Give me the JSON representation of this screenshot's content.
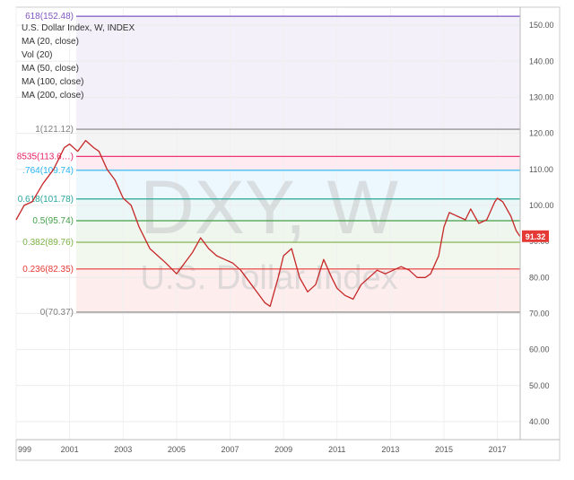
{
  "legend": {
    "title": "U.S. Dollar Index, W, INDEX",
    "studies": [
      "MA (20, close)",
      "Vol (20)",
      "MA (50, close)",
      "MA (100, close)",
      "MA (200, close)"
    ]
  },
  "watermark": {
    "symbol": "DXY, W",
    "name": "U.S. Dollar Index"
  },
  "price_tag": {
    "value": "91.32",
    "color": "#e53935"
  },
  "chart_data": {
    "type": "line",
    "title": "U.S. Dollar Index, W, INDEX",
    "ylim": [
      35,
      155
    ],
    "xlim": [
      1999.0,
      2017.85
    ],
    "y_ticks": [
      "40.00",
      "50.00",
      "60.00",
      "70.00",
      "80.00",
      "90.00",
      "100.00",
      "110.00",
      "120.00",
      "130.00",
      "140.00",
      "150.00"
    ],
    "y_tick_values": [
      40,
      50,
      60,
      70,
      80,
      90,
      100,
      110,
      120,
      130,
      140,
      150
    ],
    "x_ticks": [
      "999",
      "2001",
      "2003",
      "2005",
      "2007",
      "2009",
      "2011",
      "2013",
      "2015",
      "2017"
    ],
    "x_tick_values": [
      1999.0,
      2001.0,
      2003.0,
      2005.0,
      2007.0,
      2009.0,
      2011.0,
      2013.0,
      2015.0,
      2017.0
    ],
    "fib_levels": [
      {
        "label": "618(152.48)",
        "value": 152.48,
        "color": "#7e57c2"
      },
      {
        "label": "1(121.12)",
        "value": 121.12,
        "color": "#808080"
      },
      {
        "label": "8535(113.6…)",
        "value": 113.6,
        "color": "#e91e63"
      },
      {
        "label": ".764(109.74)",
        "value": 109.74,
        "color": "#29b6f6"
      },
      {
        "label": "0.618(101.78)",
        "value": 101.78,
        "color": "#26a69a"
      },
      {
        "label": "0.5(95.74)",
        "value": 95.74,
        "color": "#43a047"
      },
      {
        "label": "0.382(89.76)",
        "value": 89.76,
        "color": "#7cb342"
      },
      {
        "label": "0.236(82.35)",
        "value": 82.35,
        "color": "#e53935"
      },
      {
        "label": "0(70.37)",
        "value": 70.37,
        "color": "#808080"
      }
    ],
    "series": [
      {
        "name": "U.S. Dollar Index",
        "color": "#c62828",
        "x": [
          1999.0,
          1999.3,
          1999.6,
          2000.0,
          2000.4,
          2000.8,
          2001.0,
          2001.3,
          2001.6,
          2001.9,
          2002.1,
          2002.4,
          2002.7,
          2003.0,
          2003.3,
          2003.6,
          2004.0,
          2004.3,
          2004.6,
          2005.0,
          2005.3,
          2005.6,
          2005.9,
          2006.2,
          2006.5,
          2006.8,
          2007.1,
          2007.4,
          2007.7,
          2008.0,
          2008.3,
          2008.5,
          2008.8,
          2009.0,
          2009.3,
          2009.6,
          2009.9,
          2010.2,
          2010.5,
          2010.8,
          2011.0,
          2011.3,
          2011.6,
          2011.9,
          2012.2,
          2012.5,
          2012.8,
          2013.1,
          2013.4,
          2013.7,
          2014.0,
          2014.3,
          2014.5,
          2014.8,
          2015.0,
          2015.2,
          2015.5,
          2015.8,
          2016.0,
          2016.3,
          2016.6,
          2016.9,
          2017.0,
          2017.2,
          2017.5,
          2017.7,
          2017.85
        ],
        "y": [
          96,
          100,
          101,
          106,
          110,
          116,
          117,
          115,
          118,
          116,
          115,
          110,
          107,
          102,
          100,
          94,
          88,
          86,
          84,
          81,
          84,
          87,
          91,
          88,
          86,
          85,
          84,
          82,
          79,
          76,
          73,
          72,
          80,
          86,
          88,
          80,
          76,
          78,
          85,
          80,
          77,
          75,
          74,
          78,
          80,
          82,
          81,
          82,
          83,
          82,
          80,
          80,
          81,
          86,
          94,
          98,
          97,
          96,
          99,
          95,
          96,
          101,
          102,
          101,
          97,
          93,
          91.32
        ]
      }
    ]
  }
}
